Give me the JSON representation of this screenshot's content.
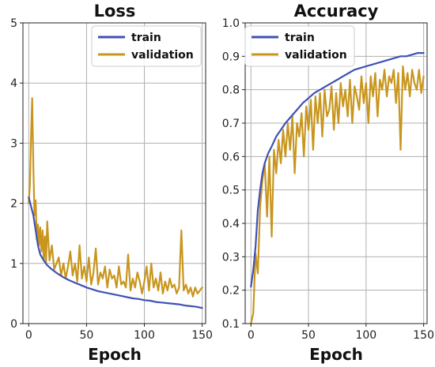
{
  "chart_data": [
    {
      "type": "line",
      "title": "Loss",
      "xlabel": "Epoch",
      "ylabel": "",
      "xlim": [
        -5,
        153
      ],
      "ylim": [
        0,
        5
      ],
      "xticks": [
        0,
        50,
        100,
        150
      ],
      "xtick_labels": [
        "0",
        "50",
        "100",
        "150"
      ],
      "yticks": [
        0,
        1,
        2,
        3,
        4,
        5
      ],
      "ytick_labels": [
        "0",
        "1",
        "2",
        "3",
        "4",
        "5"
      ],
      "grid": true,
      "legend_position": "top-right",
      "series": [
        {
          "name": "train",
          "color": "#3f51b5",
          "x": [
            0,
            2,
            4,
            6,
            8,
            10,
            13,
            16,
            20,
            25,
            30,
            35,
            40,
            45,
            50,
            55,
            60,
            65,
            70,
            75,
            80,
            85,
            90,
            95,
            100,
            105,
            110,
            115,
            120,
            125,
            130,
            135,
            140,
            145,
            150
          ],
          "y": [
            2.1,
            1.95,
            1.8,
            1.55,
            1.3,
            1.15,
            1.05,
            0.97,
            0.9,
            0.83,
            0.77,
            0.72,
            0.68,
            0.64,
            0.6,
            0.57,
            0.54,
            0.52,
            0.5,
            0.48,
            0.46,
            0.44,
            0.42,
            0.41,
            0.39,
            0.38,
            0.36,
            0.35,
            0.34,
            0.33,
            0.32,
            0.3,
            0.29,
            0.28,
            0.26
          ]
        },
        {
          "name": "validation",
          "color": "#c8961e",
          "x": [
            0,
            1,
            2,
            3,
            4,
            5,
            6,
            7,
            8,
            9,
            10,
            11,
            12,
            13,
            14,
            15,
            16,
            18,
            20,
            22,
            24,
            26,
            28,
            30,
            32,
            34,
            36,
            38,
            40,
            42,
            44,
            46,
            48,
            50,
            52,
            54,
            56,
            58,
            60,
            62,
            64,
            66,
            68,
            70,
            72,
            74,
            76,
            78,
            80,
            82,
            84,
            86,
            88,
            90,
            92,
            94,
            96,
            98,
            100,
            102,
            104,
            106,
            108,
            110,
            112,
            114,
            116,
            118,
            120,
            122,
            124,
            126,
            128,
            130,
            132,
            134,
            136,
            138,
            140,
            142,
            144,
            146,
            148,
            150
          ],
          "y": [
            2.0,
            2.3,
            3.1,
            3.75,
            2.6,
            1.8,
            2.05,
            1.4,
            1.65,
            1.3,
            1.6,
            1.2,
            1.55,
            1.05,
            1.45,
            1.0,
            1.7,
            1.05,
            1.3,
            0.9,
            1.0,
            1.1,
            0.8,
            1.0,
            0.75,
            0.95,
            1.2,
            0.8,
            1.0,
            0.7,
            1.3,
            0.75,
            0.95,
            0.7,
            1.1,
            0.65,
            0.85,
            1.25,
            0.65,
            0.85,
            0.75,
            0.95,
            0.6,
            0.9,
            0.75,
            0.8,
            0.6,
            0.95,
            0.65,
            0.7,
            0.6,
            1.15,
            0.55,
            0.75,
            0.6,
            0.85,
            0.7,
            0.5,
            0.7,
            0.95,
            0.55,
            1.0,
            0.6,
            0.75,
            0.55,
            0.85,
            0.5,
            0.7,
            0.55,
            0.75,
            0.6,
            0.65,
            0.5,
            0.6,
            1.55,
            0.55,
            0.65,
            0.5,
            0.6,
            0.45,
            0.6,
            0.5,
            0.55,
            0.6
          ]
        }
      ]
    },
    {
      "type": "line",
      "title": "Accuracy",
      "xlabel": "Epoch",
      "ylabel": "",
      "xlim": [
        -5,
        153
      ],
      "ylim": [
        0.1,
        1.0
      ],
      "xticks": [
        0,
        50,
        100,
        150
      ],
      "xtick_labels": [
        "0",
        "50",
        "100",
        "150"
      ],
      "yticks": [
        0.1,
        0.2,
        0.3,
        0.4,
        0.5,
        0.6,
        0.7,
        0.8,
        0.9,
        1.0
      ],
      "ytick_labels": [
        "0.1",
        "0.2",
        "0.3",
        "0.4",
        "0.5",
        "0.6",
        "0.7",
        "0.8",
        "0.9",
        "1.0"
      ],
      "grid": true,
      "legend_position": "top-left",
      "series": [
        {
          "name": "train",
          "color": "#3f51b5",
          "x": [
            0,
            2,
            4,
            6,
            8,
            10,
            12,
            15,
            18,
            22,
            26,
            30,
            35,
            40,
            45,
            50,
            55,
            60,
            65,
            70,
            75,
            80,
            85,
            90,
            95,
            100,
            105,
            110,
            115,
            120,
            125,
            130,
            135,
            140,
            145,
            150
          ],
          "y": [
            0.21,
            0.26,
            0.33,
            0.44,
            0.5,
            0.55,
            0.58,
            0.61,
            0.63,
            0.66,
            0.68,
            0.7,
            0.72,
            0.74,
            0.76,
            0.775,
            0.79,
            0.8,
            0.81,
            0.82,
            0.83,
            0.84,
            0.85,
            0.86,
            0.865,
            0.87,
            0.875,
            0.88,
            0.885,
            0.89,
            0.895,
            0.9,
            0.9,
            0.905,
            0.91,
            0.91
          ]
        },
        {
          "name": "validation",
          "color": "#c8961e",
          "x": [
            0,
            2,
            4,
            6,
            8,
            10,
            12,
            14,
            16,
            18,
            20,
            22,
            24,
            26,
            28,
            30,
            32,
            34,
            36,
            38,
            40,
            42,
            44,
            46,
            48,
            50,
            52,
            54,
            56,
            58,
            60,
            62,
            64,
            66,
            68,
            70,
            72,
            74,
            76,
            78,
            80,
            82,
            84,
            86,
            88,
            90,
            92,
            94,
            96,
            98,
            100,
            102,
            104,
            106,
            108,
            110,
            112,
            114,
            116,
            118,
            120,
            122,
            124,
            126,
            128,
            130,
            132,
            134,
            136,
            138,
            140,
            142,
            144,
            146,
            148,
            150
          ],
          "y": [
            0.1,
            0.13,
            0.31,
            0.25,
            0.45,
            0.53,
            0.58,
            0.42,
            0.6,
            0.36,
            0.62,
            0.55,
            0.65,
            0.58,
            0.68,
            0.6,
            0.7,
            0.62,
            0.72,
            0.55,
            0.7,
            0.66,
            0.73,
            0.6,
            0.75,
            0.68,
            0.77,
            0.62,
            0.78,
            0.7,
            0.79,
            0.66,
            0.8,
            0.72,
            0.74,
            0.81,
            0.68,
            0.79,
            0.7,
            0.82,
            0.75,
            0.8,
            0.72,
            0.83,
            0.7,
            0.81,
            0.78,
            0.74,
            0.84,
            0.76,
            0.82,
            0.7,
            0.84,
            0.78,
            0.85,
            0.72,
            0.83,
            0.8,
            0.86,
            0.78,
            0.84,
            0.82,
            0.86,
            0.76,
            0.85,
            0.62,
            0.87,
            0.8,
            0.85,
            0.78,
            0.86,
            0.82,
            0.8,
            0.86,
            0.79,
            0.84
          ]
        }
      ]
    }
  ]
}
